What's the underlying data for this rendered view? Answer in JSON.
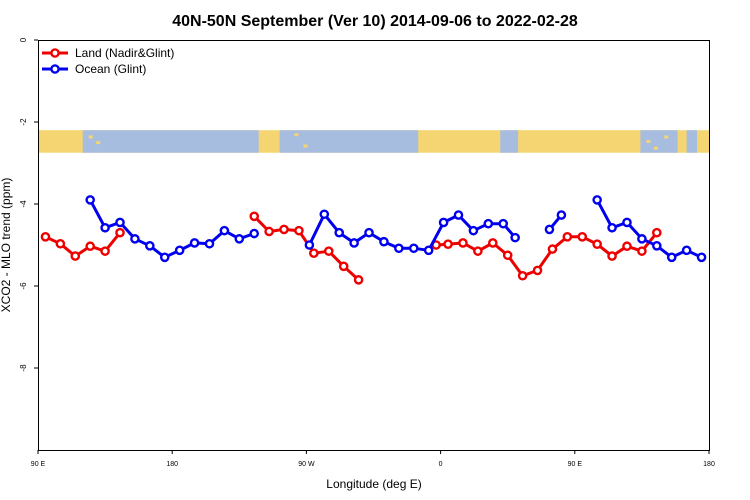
{
  "chart_data": {
    "type": "line",
    "title": "40N-50N September (Ver 10)   2014-09-06 to 2022-02-28",
    "xlabel": "Longitude (deg E)",
    "ylabel": "XCO2 - MLO trend (ppm)",
    "x_range": [
      90,
      540
    ],
    "ylim": [
      -10,
      0
    ],
    "y_ticks": [
      {
        "value": 0,
        "label": "0"
      },
      {
        "value": -2,
        "label": "-2"
      },
      {
        "value": -4,
        "label": "-4"
      },
      {
        "value": -6,
        "label": "-6"
      },
      {
        "value": -8,
        "label": "-8"
      }
    ],
    "x_ticks": [
      {
        "value": 90,
        "label": "90 E"
      },
      {
        "value": 180,
        "label": "180"
      },
      {
        "value": 270,
        "label": "90 W"
      },
      {
        "value": 360,
        "label": "0"
      },
      {
        "value": 450,
        "label": "90 E"
      },
      {
        "value": 540,
        "label": "180"
      }
    ],
    "grid": false,
    "legend_position": "top-left",
    "map_band_y_range": [
      -2.2,
      -2.75
    ],
    "map_colors": {
      "land": "#f5d572",
      "ocean": "#a7bde0"
    },
    "series": [
      {
        "name": "Land (Nadir&Glint)",
        "color": "#ee0000",
        "segments": [
          [
            [
              95,
              -4.8
            ],
            [
              105,
              -4.97
            ],
            [
              115,
              -5.27
            ],
            [
              125,
              -5.03
            ],
            [
              135,
              -5.15
            ],
            [
              145,
              -4.7
            ]
          ],
          [
            [
              235,
              -4.3
            ],
            [
              245,
              -4.67
            ],
            [
              255,
              -4.62
            ],
            [
              265,
              -4.65
            ],
            [
              275,
              -5.2
            ],
            [
              285,
              -5.15
            ],
            [
              295,
              -5.52
            ],
            [
              305,
              -5.85
            ]
          ],
          [
            [
              357,
              -5.0
            ],
            [
              365,
              -4.98
            ],
            [
              375,
              -4.95
            ],
            [
              385,
              -5.15
            ],
            [
              395,
              -4.95
            ],
            [
              405,
              -5.25
            ],
            [
              415,
              -5.75
            ],
            [
              425,
              -5.62
            ],
            [
              435,
              -5.1
            ],
            [
              445,
              -4.8
            ],
            [
              455,
              -4.8
            ],
            [
              465,
              -4.98
            ],
            [
              475,
              -5.27
            ],
            [
              485,
              -5.03
            ],
            [
              495,
              -5.15
            ],
            [
              505,
              -4.7
            ]
          ]
        ]
      },
      {
        "name": "Ocean (Glint)",
        "color": "#0000ee",
        "segments": [
          [
            [
              125,
              -3.9
            ],
            [
              135,
              -4.58
            ],
            [
              145,
              -4.45
            ],
            [
              155,
              -4.85
            ],
            [
              165,
              -5.02
            ],
            [
              175,
              -5.3
            ],
            [
              185,
              -5.13
            ],
            [
              195,
              -4.95
            ],
            [
              205,
              -4.97
            ],
            [
              215,
              -4.65
            ],
            [
              225,
              -4.85
            ],
            [
              235,
              -4.72
            ]
          ],
          [
            [
              272,
              -5.0
            ],
            [
              282,
              -4.25
            ],
            [
              292,
              -4.7
            ],
            [
              302,
              -4.95
            ],
            [
              312,
              -4.7
            ],
            [
              322,
              -4.92
            ],
            [
              332,
              -5.08
            ],
            [
              342,
              -5.08
            ],
            [
              352,
              -5.13
            ],
            [
              362,
              -4.45
            ],
            [
              372,
              -4.27
            ],
            [
              382,
              -4.65
            ],
            [
              392,
              -4.48
            ],
            [
              402,
              -4.48
            ],
            [
              410,
              -4.82
            ]
          ],
          [
            [
              433,
              -4.62
            ],
            [
              441,
              -4.27
            ]
          ],
          [
            [
              465,
              -3.9
            ],
            [
              475,
              -4.58
            ],
            [
              485,
              -4.45
            ],
            [
              495,
              -4.85
            ],
            [
              505,
              -5.02
            ],
            [
              515,
              -5.3
            ],
            [
              525,
              -5.13
            ],
            [
              535,
              -5.3
            ]
          ]
        ]
      }
    ]
  }
}
